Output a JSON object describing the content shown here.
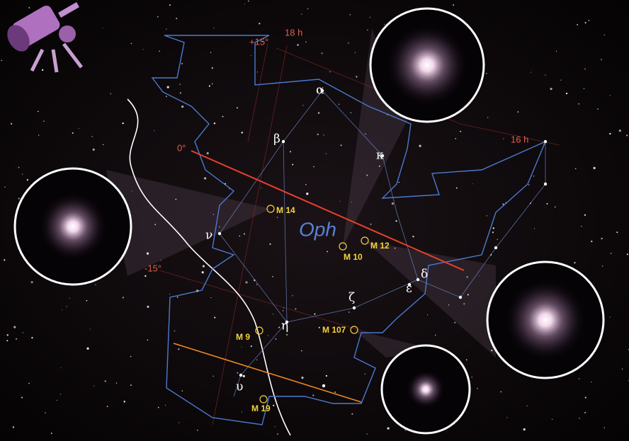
{
  "grid_labels": {
    "dec": [
      "+15°",
      "0°",
      "-15°"
    ],
    "ra": [
      "18 h",
      "16 h"
    ]
  },
  "constellation": "Oph",
  "stars": [
    "α",
    "β",
    "κ",
    "ν",
    "δ",
    "ε",
    "ζ",
    "η",
    "υ"
  ],
  "objects": [
    "M 14",
    "M 12",
    "M 10",
    "M 107",
    "M 9",
    "M 19"
  ]
}
